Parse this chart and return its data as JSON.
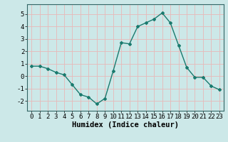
{
  "x": [
    0,
    1,
    2,
    3,
    4,
    5,
    6,
    7,
    8,
    9,
    10,
    11,
    12,
    13,
    14,
    15,
    16,
    17,
    18,
    19,
    20,
    21,
    22,
    23
  ],
  "y": [
    0.8,
    0.8,
    0.6,
    0.3,
    0.1,
    -0.7,
    -1.5,
    -1.7,
    -2.25,
    -1.8,
    0.4,
    2.7,
    2.6,
    4.0,
    4.3,
    4.6,
    5.1,
    4.3,
    2.5,
    0.7,
    -0.1,
    -0.1,
    -0.8,
    -1.1
  ],
  "line_color": "#1a7a6e",
  "marker": "D",
  "marker_size": 2.0,
  "line_width": 1.0,
  "xlabel": "Humidex (Indice chaleur)",
  "ylim": [
    -2.8,
    5.8
  ],
  "xlim": [
    -0.5,
    23.5
  ],
  "yticks": [
    -2,
    -1,
    0,
    1,
    2,
    3,
    4,
    5
  ],
  "xticks": [
    0,
    1,
    2,
    3,
    4,
    5,
    6,
    7,
    8,
    9,
    10,
    11,
    12,
    13,
    14,
    15,
    16,
    17,
    18,
    19,
    20,
    21,
    22,
    23
  ],
  "bg_color": "#cce8e8",
  "grid_color": "#e8b8b8",
  "xlabel_fontsize": 7.5,
  "tick_fontsize": 6.5
}
